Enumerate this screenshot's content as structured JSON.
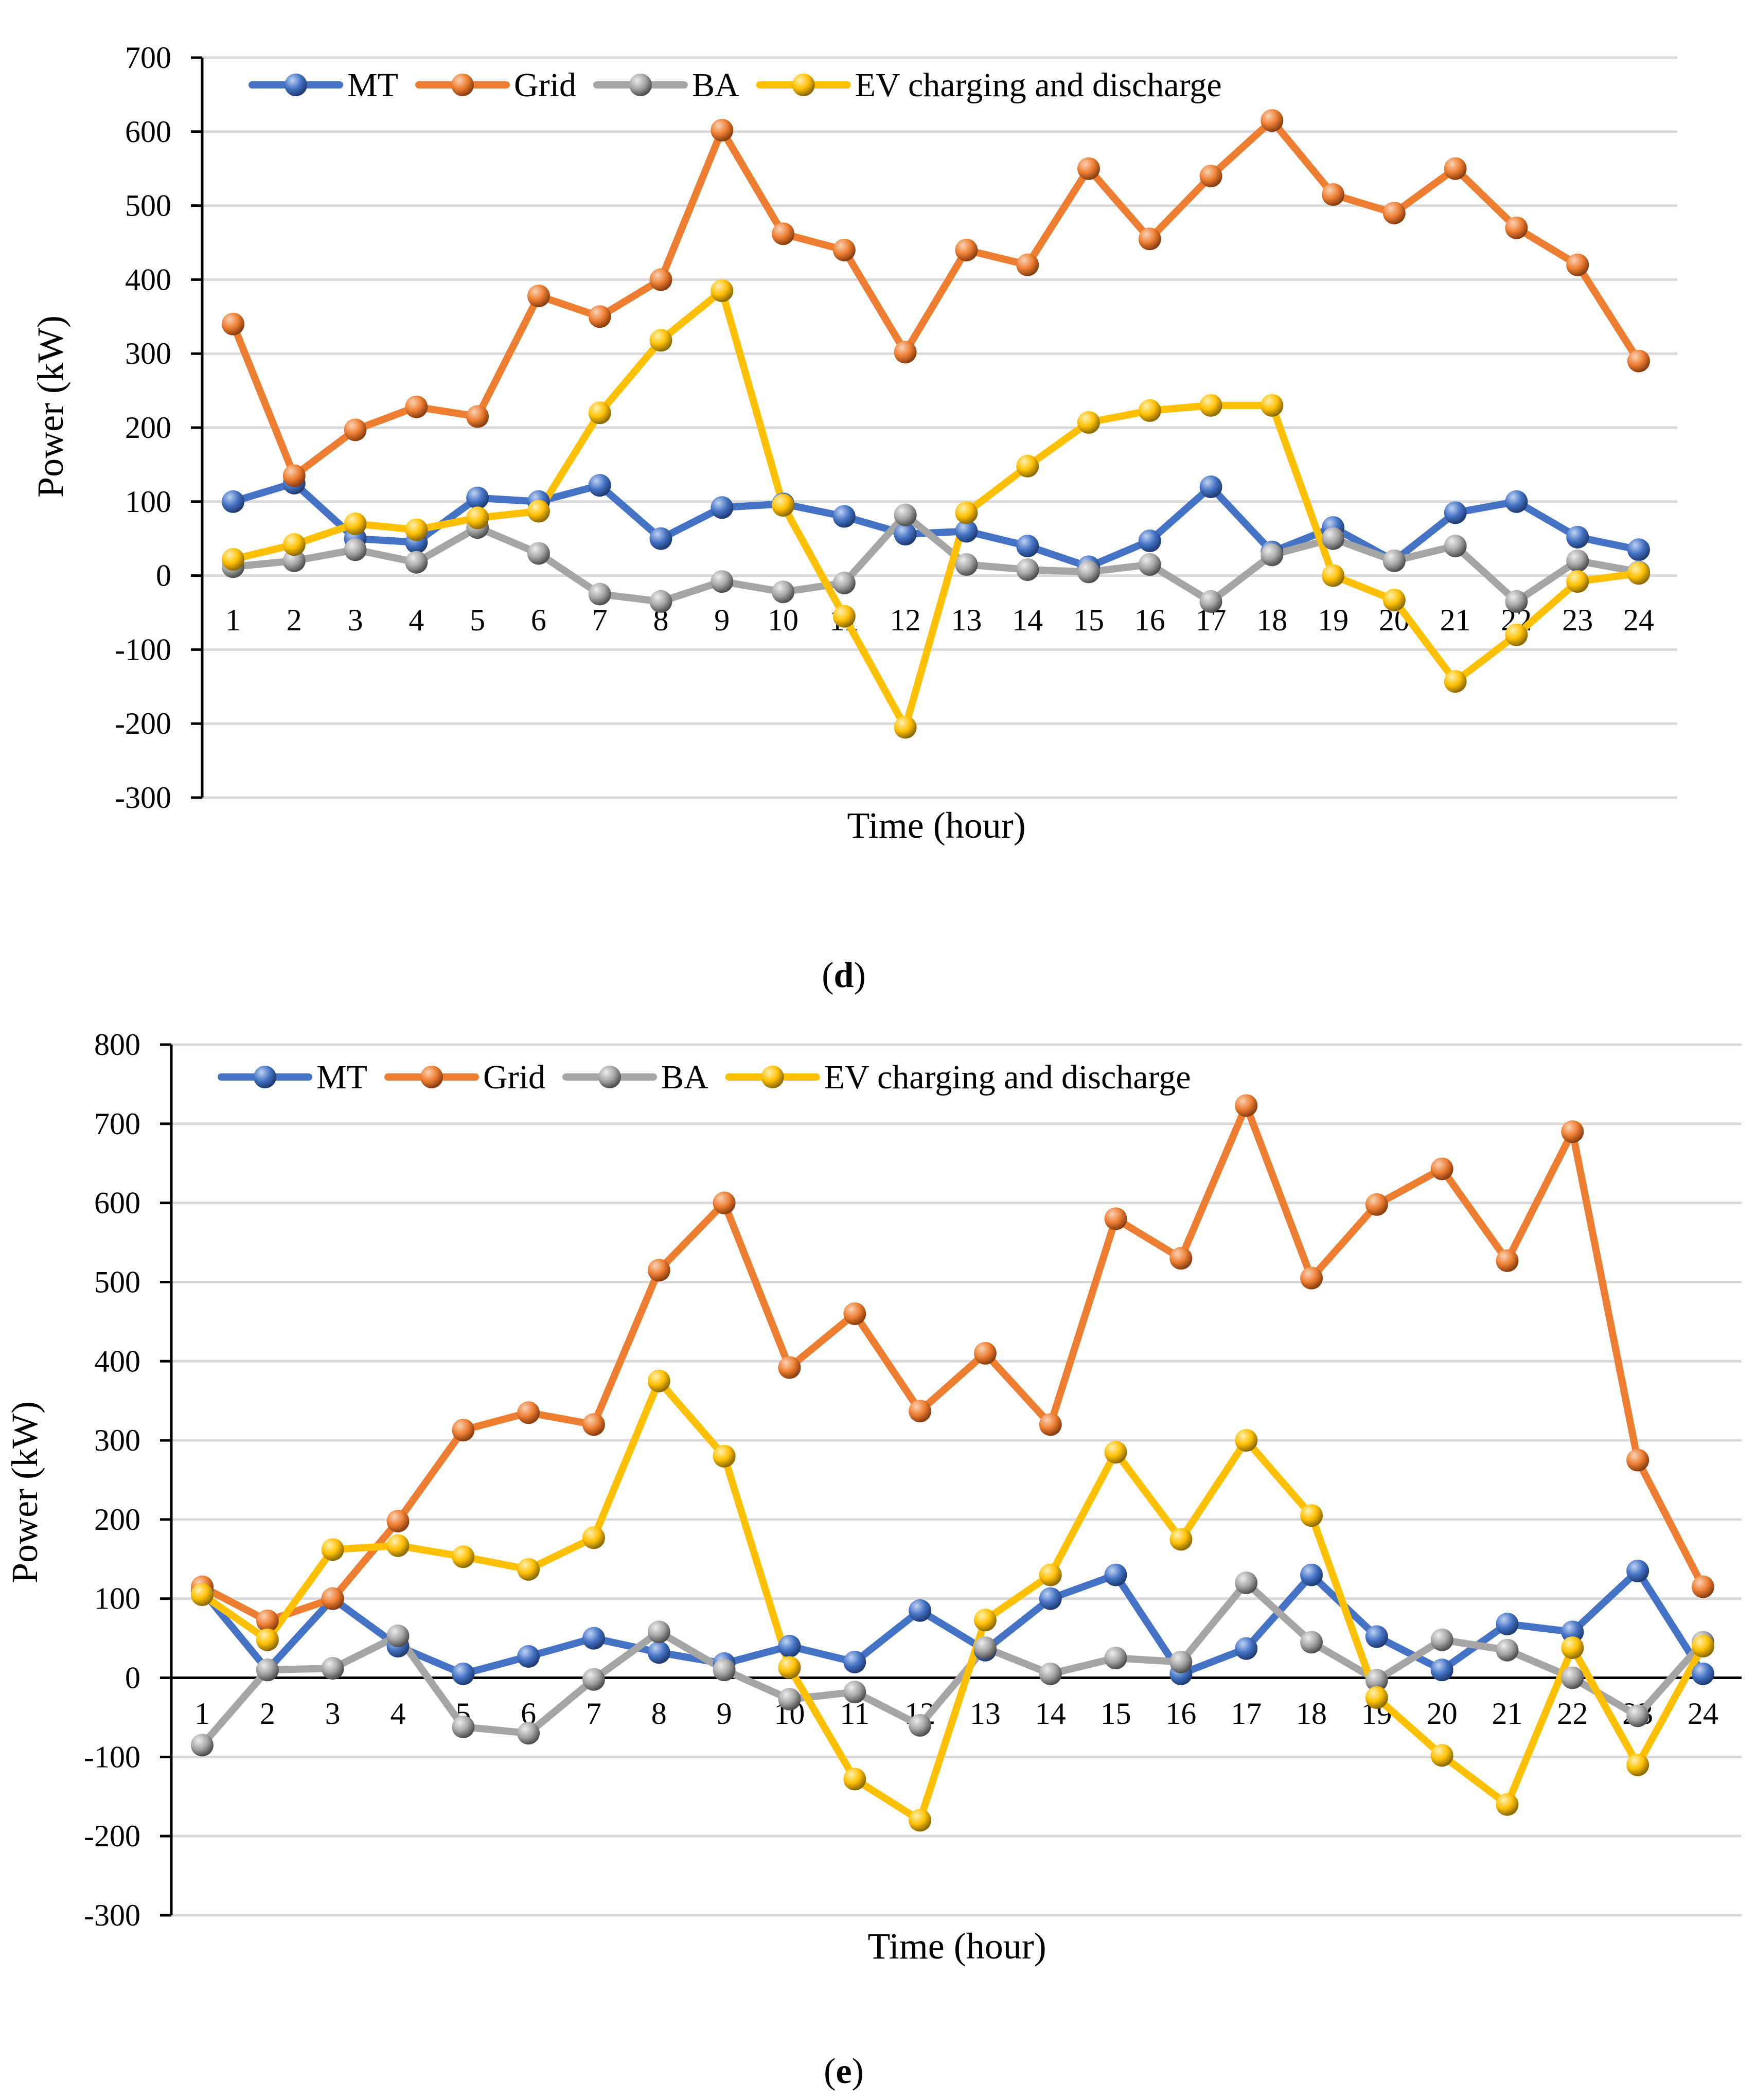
{
  "chart_data": [
    {
      "type": "line",
      "panel": "d",
      "caption": "(d)",
      "title": "",
      "xlabel": "Time (hour)",
      "ylabel": "Power (kW)",
      "ylim": [
        -300,
        700
      ],
      "yticks": [
        700,
        600,
        500,
        400,
        300,
        200,
        100,
        0,
        -100,
        -200,
        -300
      ],
      "categories": [
        "1",
        "2",
        "3",
        "4",
        "5",
        "6",
        "7",
        "8",
        "9",
        "10",
        "11",
        "12",
        "13",
        "14",
        "15",
        "16",
        "17",
        "18",
        "19",
        "20",
        "21",
        "22",
        "23",
        "24"
      ],
      "legend_position": "top",
      "grid": true,
      "series": [
        {
          "name": "MT",
          "color": "#4472C4",
          "values": [
            100,
            125,
            50,
            45,
            105,
            100,
            122,
            50,
            92,
            97,
            80,
            56,
            60,
            40,
            12,
            47,
            120,
            32,
            65,
            20,
            85,
            100,
            52,
            35
          ]
        },
        {
          "name": "Grid",
          "color": "#ED7D31",
          "values": [
            340,
            135,
            197,
            228,
            215,
            378,
            350,
            400,
            602,
            462,
            440,
            302,
            440,
            420,
            550,
            455,
            540,
            615,
            515,
            490,
            550,
            470,
            420,
            290
          ]
        },
        {
          "name": "BA",
          "color": "#A5A5A5",
          "values": [
            12,
            20,
            35,
            18,
            65,
            30,
            -25,
            -35,
            -8,
            -22,
            -10,
            82,
            15,
            8,
            5,
            15,
            -35,
            28,
            50,
            20,
            40,
            -35,
            20,
            5
          ]
        },
        {
          "name": "EV charging and discharge",
          "color": "#FFC000",
          "values": [
            22,
            42,
            70,
            62,
            78,
            87,
            220,
            318,
            385,
            95,
            -55,
            -205,
            85,
            148,
            207,
            223,
            230,
            230,
            0,
            -33,
            -143,
            -80,
            -8,
            3
          ]
        }
      ]
    },
    {
      "type": "line",
      "panel": "e",
      "caption": "(e)",
      "title": "",
      "xlabel": "Time (hour)",
      "ylabel": "Power (kW)",
      "ylim": [
        -300,
        800
      ],
      "yticks": [
        800,
        700,
        600,
        500,
        400,
        300,
        200,
        100,
        0,
        -100,
        -200,
        -300
      ],
      "categories": [
        "1",
        "2",
        "3",
        "4",
        "5",
        "6",
        "7",
        "8",
        "9",
        "10",
        "11",
        "12",
        "13",
        "14",
        "15",
        "16",
        "17",
        "18",
        "19",
        "20",
        "21",
        "22",
        "23",
        "24"
      ],
      "legend_position": "top",
      "grid": true,
      "series": [
        {
          "name": "MT",
          "color": "#4472C4",
          "values": [
            110,
            10,
            100,
            40,
            5,
            27,
            50,
            32,
            18,
            40,
            20,
            85,
            35,
            100,
            130,
            5,
            37,
            130,
            52,
            10,
            68,
            58,
            135,
            5
          ]
        },
        {
          "name": "Grid",
          "color": "#ED7D31",
          "values": [
            115,
            72,
            100,
            198,
            313,
            335,
            320,
            515,
            600,
            392,
            460,
            337,
            410,
            320,
            580,
            530,
            723,
            505,
            598,
            643,
            527,
            690,
            275,
            115
          ]
        },
        {
          "name": "BA",
          "color": "#A5A5A5",
          "values": [
            -85,
            10,
            12,
            53,
            -62,
            -70,
            -2,
            58,
            10,
            -27,
            -18,
            -60,
            38,
            5,
            25,
            20,
            120,
            45,
            -3,
            48,
            35,
            0,
            -48,
            45
          ]
        },
        {
          "name": "EV charging and discharge",
          "color": "#FFC000",
          "values": [
            105,
            48,
            162,
            167,
            153,
            137,
            177,
            375,
            280,
            13,
            -128,
            -180,
            73,
            130,
            285,
            175,
            300,
            205,
            -25,
            -98,
            -160,
            38,
            -110,
            40
          ]
        }
      ]
    }
  ]
}
